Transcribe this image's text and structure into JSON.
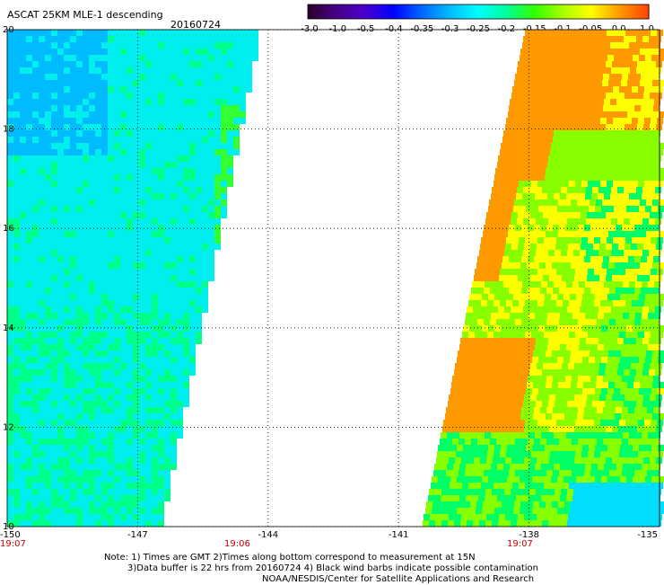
{
  "header": {
    "title": "ASCAT 25KM MLE-1 descending",
    "date": "20160724"
  },
  "colorbar": {
    "labels": [
      "-3.0",
      "-1.0",
      "-0.5",
      "-0.4",
      "-0.35",
      "-0.3",
      "-0.25",
      "-0.2",
      "-0.15",
      "-0.1",
      "-0.05",
      "0.0",
      "1.0"
    ],
    "colors": [
      "#2a002a",
      "#480088",
      "#4a00cc",
      "#0000ff",
      "#0066ff",
      "#00bbff",
      "#00ffff",
      "#00ff99",
      "#33ff00",
      "#aaff00",
      "#ffff00",
      "#ff9900",
      "#ff4400"
    ]
  },
  "axes": {
    "x_ticks": [
      "-150",
      "-147",
      "-144",
      "-141",
      "-138",
      "-135"
    ],
    "y_ticks": [
      "20",
      "18",
      "16",
      "14",
      "12",
      "10"
    ],
    "xlim": [
      -150,
      -135
    ],
    "ylim": [
      10,
      20
    ],
    "grid": "dotted"
  },
  "times": [
    "19:07",
    "19:06",
    "19:07"
  ],
  "notes": {
    "line1": "Note: 1) Times are GMT 2)Times along bottom correspond to measurement at 15N",
    "line2": "3)Data buffer is 22 hrs from 20160724 4) Black wind barbs indicate possible contamination",
    "line3": "NOAA/NESDIS/Center for Satellite Applications and Research"
  },
  "swaths": {
    "left": {
      "description_colors": [
        "#00eeee",
        "#00bbff",
        "#00ff88",
        "#33ff33"
      ]
    },
    "right": {
      "description_colors": [
        "#ff9900",
        "#ffff00",
        "#88ff00",
        "#00ff66",
        "#00ddff"
      ]
    }
  }
}
